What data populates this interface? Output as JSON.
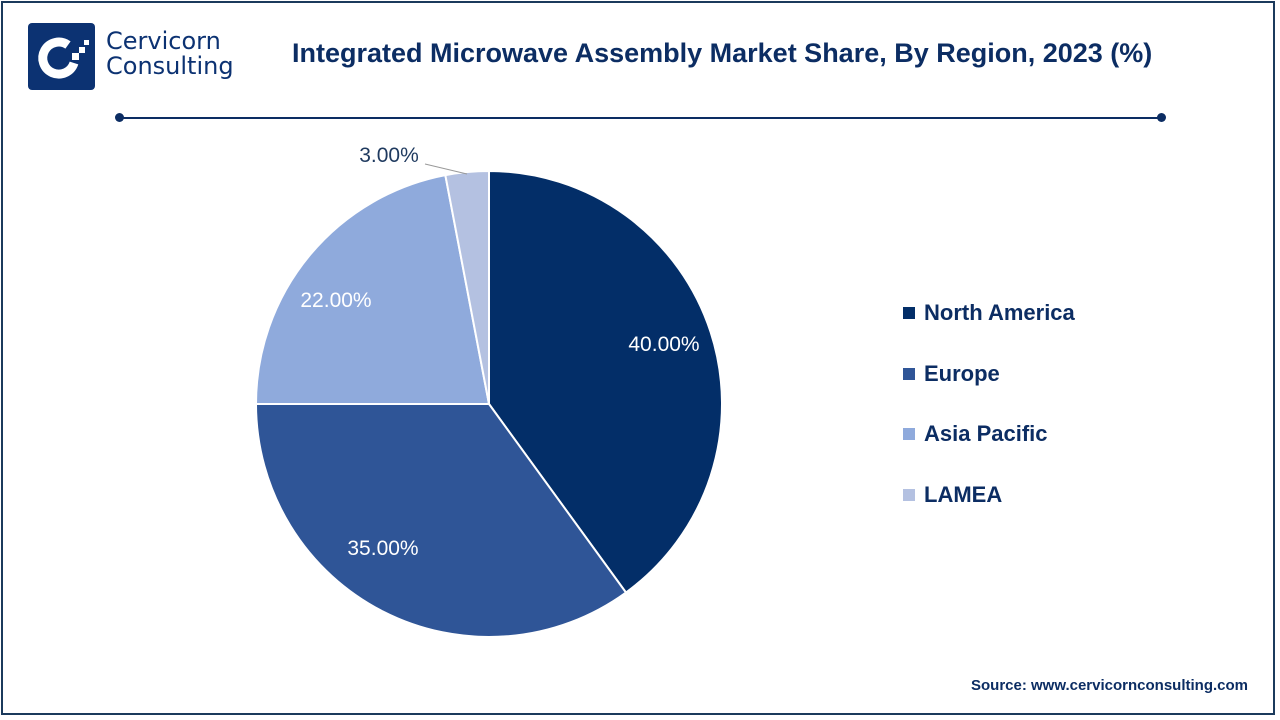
{
  "brand": {
    "line1": "Cervicorn",
    "line2": "Consulting"
  },
  "chart_data": {
    "type": "pie",
    "title": "Integrated Microwave Assembly Market Share, By Region, 2023 (%)",
    "categories": [
      "North America",
      "Europe",
      "Asia Pacific",
      "LAMEA"
    ],
    "values": [
      40,
      35,
      22,
      3
    ],
    "data_labels": [
      "40.00%",
      "35.00%",
      "22.00%",
      "3.00%"
    ],
    "colors": [
      "#032e68",
      "#2f5597",
      "#8faadc",
      "#b4c1e1"
    ],
    "legend_position": "right"
  },
  "source": "Source: www.cervicornconsulting.com"
}
